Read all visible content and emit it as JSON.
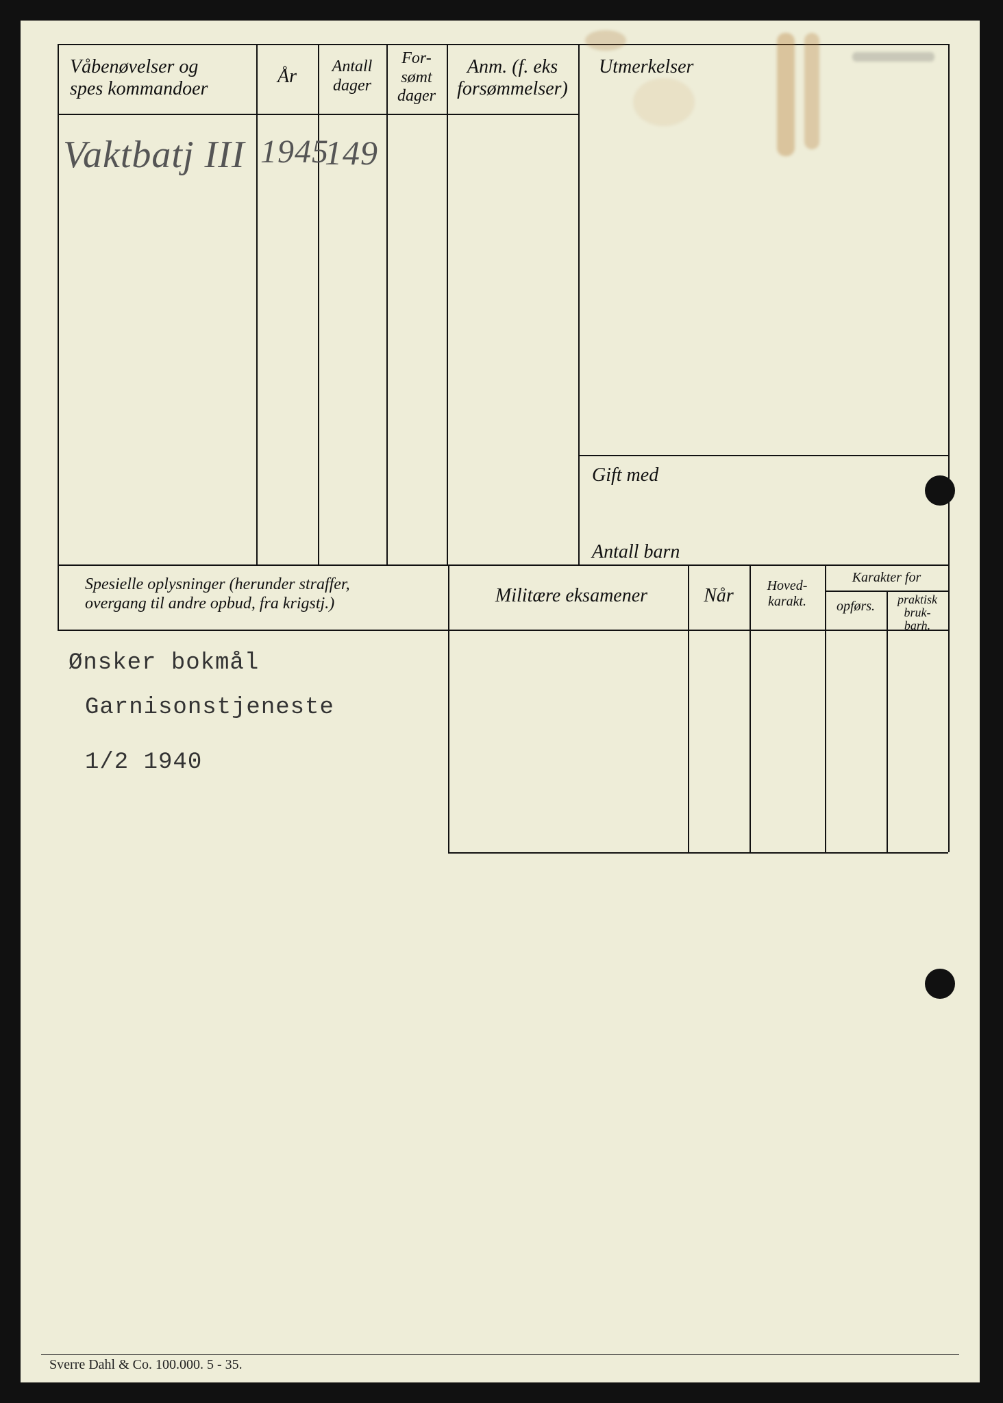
{
  "background_color": "#eeedd8",
  "line_color": "#111111",
  "headers": {
    "exercises": "Våbenøvelser og\nspes kommandoer",
    "year": "År",
    "days": "Antall\ndager",
    "missed": "For-\nsømt\ndager",
    "remarks": "Anm. (f. eks\nforsømmelser)",
    "awards": "Utmerkelser",
    "married": "Gift med",
    "children": "Antall barn",
    "special": "Spesielle oplysninger (herunder straffer,\novergang til andre opbud, fra krigstj.)",
    "exams": "Militære eksamener",
    "when": "Når",
    "main_grade": "Hoved-\nkarakt.",
    "grade_for": "Karakter for",
    "conduct": "opførs.",
    "practical": "praktisk\nbruk-\nbarh."
  },
  "handwritten": {
    "exercise_entry": "Vaktbatj III",
    "year_entry": "1945",
    "days_entry": "149"
  },
  "typed": {
    "line1": "Ønsker bokmål",
    "line2": "Garnisonstjeneste",
    "line3": "1/2 1940"
  },
  "imprint": "Sverre Dahl & Co.   100.000.   5 - 35."
}
